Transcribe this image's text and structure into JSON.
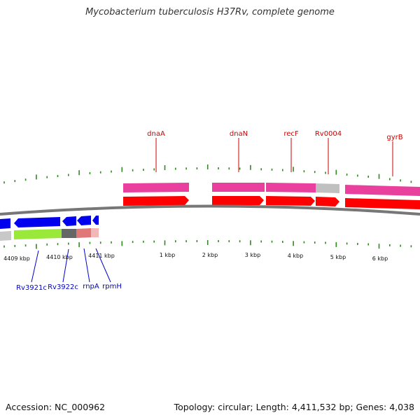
{
  "title": "Mycobacterium tuberculosis H37Rv, complete genome",
  "footer": {
    "accession": "Accession: NC_000962",
    "summary": "Topology: circular; Length: 4,411,532 bp; Genes: 4,038"
  },
  "colors": {
    "background": "#ffffff",
    "tick": "#2e8b1e",
    "backbone": "#777777",
    "forward_cds": "#ff0000",
    "forward_gene": "#e8409c",
    "reverse_cds": "#0000ee",
    "reverse_gene": "#9ae83a",
    "trna": "#e07878",
    "label_forward": "#cc0000",
    "label_reverse": "#0000cc",
    "gap_gene": "#c0c0c0",
    "gap_dark": "#666666"
  },
  "position_labels": [
    "4409 kbp",
    "4410 kbp",
    "4411 kbp",
    "1 kbp",
    "2 kbp",
    "3 kbp",
    "4 kbp",
    "5 kbp",
    "6 kbp"
  ],
  "forward_labels": [
    "dnaA",
    "dnaN",
    "recF",
    "Rv0004",
    "gyrB"
  ],
  "reverse_labels": [
    "Rv3921c",
    "Rv3922c",
    "rnpA",
    "rpmH"
  ]
}
